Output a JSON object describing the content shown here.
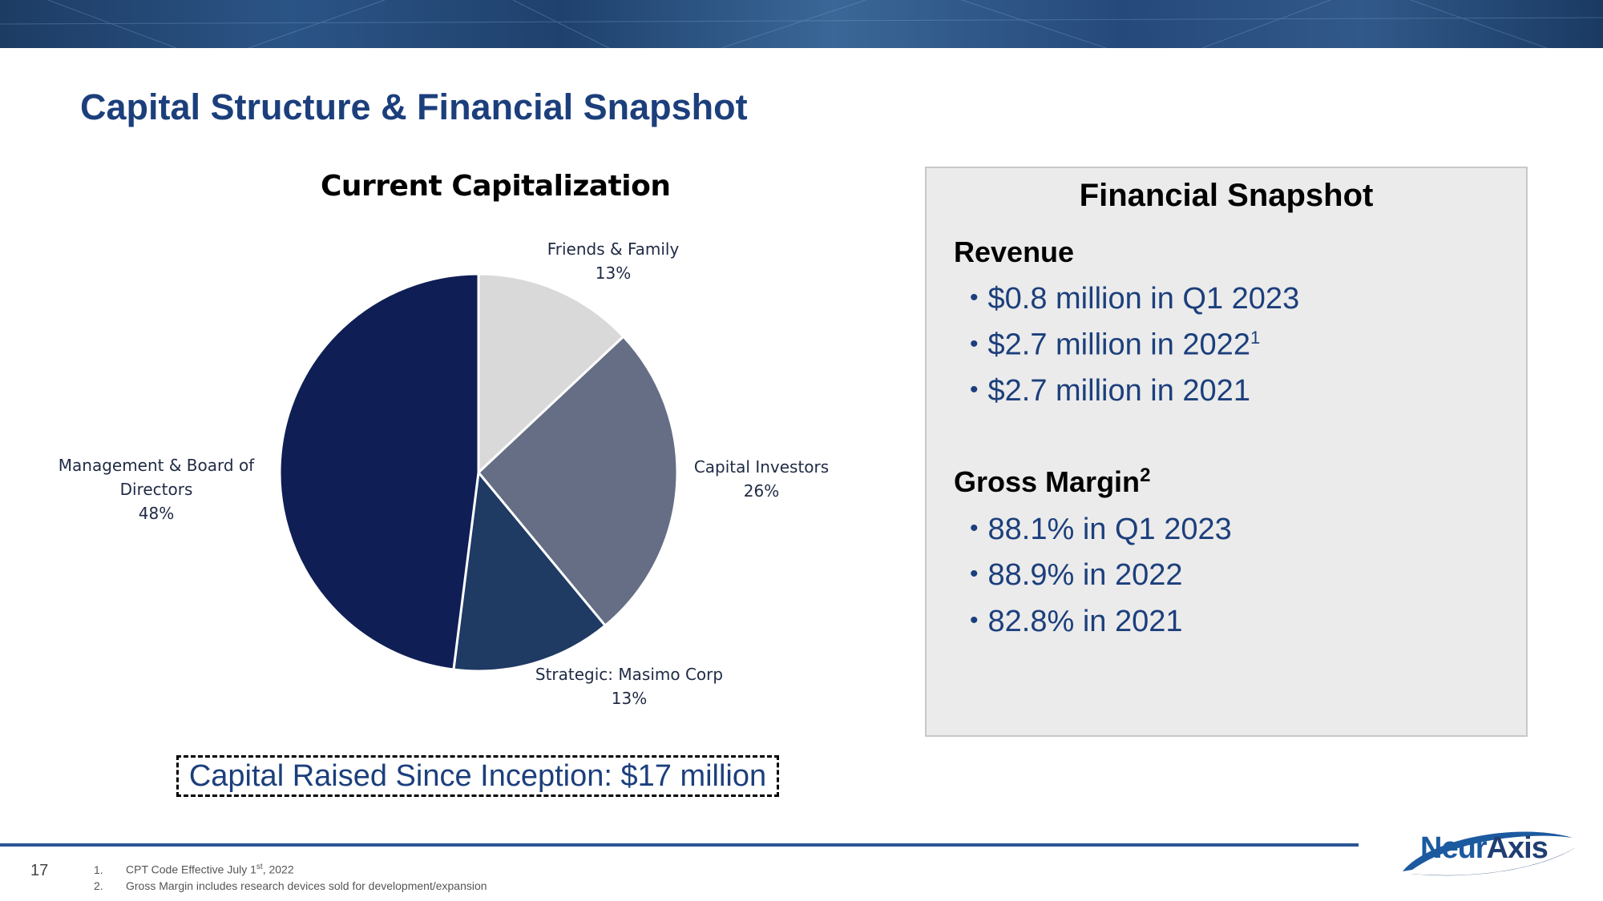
{
  "header": {
    "title": "Capital Structure & Financial Snapshot"
  },
  "chart_data": {
    "type": "pie",
    "title": "Current Capitalization",
    "slices": [
      {
        "label": "Friends & Family",
        "value": 13,
        "value_label": "13%",
        "color": "#d9d9d9"
      },
      {
        "label": "Capital Investors",
        "value": 26,
        "value_label": "26%",
        "color": "#656e85"
      },
      {
        "label": "Strategic: Masimo Corp",
        "value": 13,
        "value_label": "13%",
        "color": "#1f3a63"
      },
      {
        "label": "Management & Board of Directors",
        "value": 48,
        "value_label": "48%",
        "color": "#0f1f55"
      }
    ]
  },
  "capital_raised": "Capital Raised Since Inception: $17 million",
  "snapshot": {
    "title": "Financial Snapshot",
    "revenue": {
      "heading": "Revenue",
      "items": [
        {
          "text": "$0.8 million in Q1 2023",
          "sup": ""
        },
        {
          "text": "$2.7 million in 2022",
          "sup": "1"
        },
        {
          "text": "$2.7 million in 2021",
          "sup": ""
        }
      ]
    },
    "margin": {
      "heading": "Gross Margin",
      "heading_sup": "2",
      "items": [
        {
          "text": "88.1% in Q1 2023"
        },
        {
          "text": "88.9% in 2022"
        },
        {
          "text": "82.8% in 2021"
        }
      ]
    },
    "bullet_glyph": "•"
  },
  "footer": {
    "page_number": "17",
    "footnotes": [
      {
        "num": "1.",
        "pre": "CPT Code Effective July 1",
        "sup": "st",
        "post": ", 2022"
      },
      {
        "num": "2.",
        "pre": "Gross Margin includes research devices sold for development/expansion",
        "sup": "",
        "post": ""
      }
    ],
    "logo": {
      "part1": "Neur",
      "part2": "Axis"
    }
  }
}
